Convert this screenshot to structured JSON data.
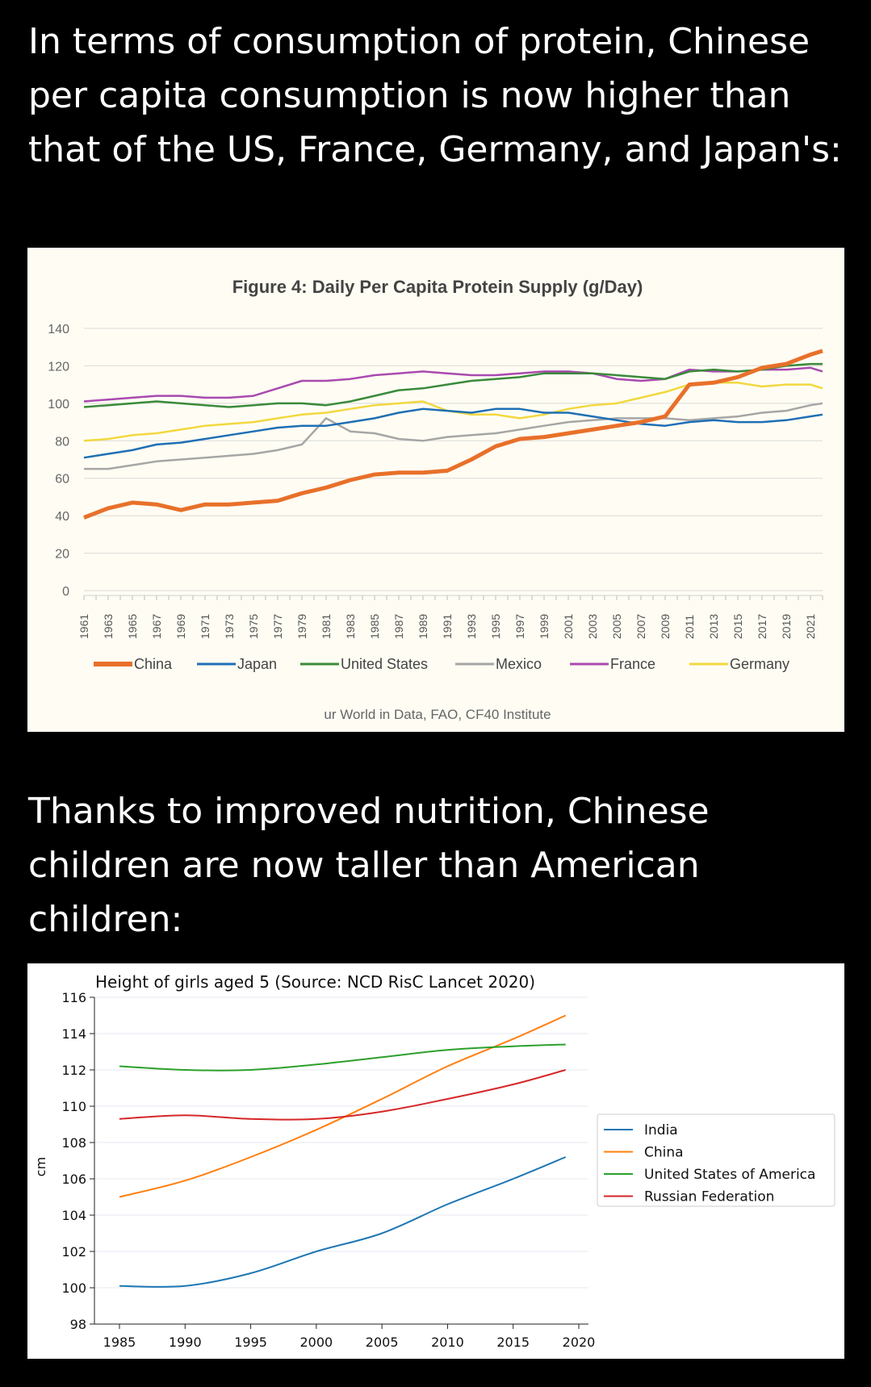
{
  "texts": {
    "heading_1": "In terms of consumption of protein, Chinese per capita consumption is now higher than that of the US, France, Germany, and Japan's:",
    "heading_2": "Thanks to improved nutrition, Chinese children are now taller than American children:"
  },
  "chart_data": [
    {
      "type": "line",
      "title": "Figure 4: Daily Per Capita Protein Supply (g/Day)",
      "source": "ur World in Data, FAO, CF40 Institute",
      "ylim": [
        0,
        140
      ],
      "yticks": [
        0,
        20,
        40,
        60,
        80,
        100,
        120,
        140
      ],
      "grid": true,
      "legend_position": "bottom",
      "x_tick_labels": [
        "1961",
        "1963",
        "1965",
        "1967",
        "1969",
        "1971",
        "1973",
        "1975",
        "1977",
        "1979",
        "1981",
        "1983",
        "1985",
        "1987",
        "1989",
        "1991",
        "1993",
        "1995",
        "1997",
        "1999",
        "2001",
        "2003",
        "2005",
        "2007",
        "2009",
        "2011",
        "2013",
        "2015",
        "2017",
        "2019",
        "2021"
      ],
      "x": [
        1961,
        1963,
        1965,
        1967,
        1969,
        1971,
        1973,
        1975,
        1977,
        1979,
        1981,
        1983,
        1985,
        1987,
        1989,
        1991,
        1993,
        1995,
        1997,
        1999,
        2001,
        2003,
        2005,
        2007,
        2009,
        2011,
        2013,
        2015,
        2017,
        2019,
        2021,
        2022
      ],
      "series": [
        {
          "name": "China",
          "color": "#e8702a",
          "width": 5,
          "values": [
            39,
            44,
            47,
            46,
            43,
            46,
            46,
            47,
            48,
            52,
            55,
            59,
            62,
            63,
            63,
            64,
            70,
            77,
            81,
            82,
            84,
            86,
            88,
            90,
            93,
            110,
            111,
            114,
            119,
            121,
            126,
            128
          ]
        },
        {
          "name": "Japan",
          "color": "#1f6fb5",
          "width": 2.5,
          "values": [
            71,
            73,
            75,
            78,
            79,
            81,
            83,
            85,
            87,
            88,
            88,
            90,
            92,
            95,
            97,
            96,
            95,
            97,
            97,
            95,
            95,
            93,
            91,
            89,
            88,
            90,
            91,
            90,
            90,
            91,
            93,
            94
          ]
        },
        {
          "name": "United States",
          "color": "#3a8a3a",
          "width": 2.5,
          "values": [
            98,
            99,
            100,
            101,
            100,
            99,
            98,
            99,
            100,
            100,
            99,
            101,
            104,
            107,
            108,
            110,
            112,
            113,
            114,
            116,
            116,
            116,
            115,
            114,
            113,
            117,
            118,
            117,
            118,
            120,
            121,
            121
          ]
        },
        {
          "name": "Mexico",
          "color": "#a6a6a6",
          "width": 2.5,
          "values": [
            65,
            65,
            67,
            69,
            70,
            71,
            72,
            73,
            75,
            78,
            92,
            85,
            84,
            81,
            80,
            82,
            83,
            84,
            86,
            88,
            90,
            91,
            92,
            92,
            92,
            91,
            92,
            93,
            95,
            96,
            99,
            100
          ]
        },
        {
          "name": "France",
          "color": "#a94ab0",
          "width": 2.5,
          "values": [
            101,
            102,
            103,
            104,
            104,
            103,
            103,
            104,
            108,
            112,
            112,
            113,
            115,
            116,
            117,
            116,
            115,
            115,
            116,
            117,
            117,
            116,
            113,
            112,
            113,
            118,
            117,
            117,
            118,
            118,
            119,
            117
          ]
        },
        {
          "name": "Germany",
          "color": "#f2d83f",
          "width": 2.5,
          "values": [
            80,
            81,
            83,
            84,
            86,
            88,
            89,
            90,
            92,
            94,
            95,
            97,
            99,
            100,
            101,
            96,
            94,
            94,
            92,
            94,
            97,
            99,
            100,
            103,
            106,
            110,
            111,
            111,
            109,
            110,
            110,
            108
          ]
        }
      ]
    },
    {
      "type": "line",
      "title": "Height of girls aged 5 (Source: NCD RisC Lancet 2020)",
      "ylabel": "cm",
      "ylim": [
        98,
        116
      ],
      "yticks": [
        98,
        100,
        102,
        104,
        106,
        108,
        110,
        112,
        114,
        116
      ],
      "xlim": [
        1985,
        2020
      ],
      "xticks": [
        1985,
        1990,
        1995,
        2000,
        2005,
        2010,
        2015,
        2020
      ],
      "grid": true,
      "legend_position": "right",
      "x": [
        1985,
        1990,
        1995,
        2000,
        2005,
        2010,
        2015,
        2019
      ],
      "series": [
        {
          "name": "India",
          "color": "#1f77b4",
          "values": [
            100.1,
            100.1,
            100.8,
            102.0,
            103.0,
            104.6,
            106.0,
            107.2
          ]
        },
        {
          "name": "China",
          "color": "#ff7f0e",
          "values": [
            105.0,
            105.9,
            107.2,
            108.7,
            110.4,
            112.2,
            113.7,
            115.0
          ]
        },
        {
          "name": "United States of America",
          "color": "#2ca02c",
          "values": [
            112.2,
            112.0,
            112.0,
            112.3,
            112.7,
            113.1,
            113.3,
            113.4
          ]
        },
        {
          "name": "Russian Federation",
          "color": "#d62728",
          "values": [
            109.3,
            109.5,
            109.3,
            109.3,
            109.7,
            110.4,
            111.2,
            112.0
          ]
        }
      ]
    }
  ]
}
